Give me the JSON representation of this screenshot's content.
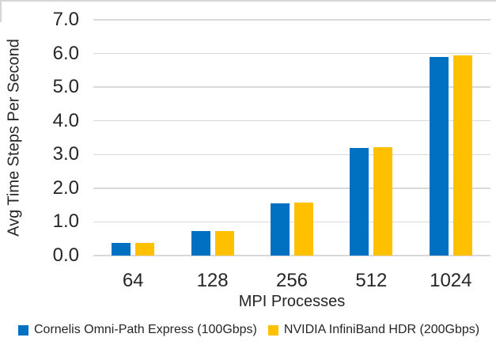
{
  "chart_data": {
    "type": "bar",
    "title": "",
    "categories": [
      "64",
      "128",
      "256",
      "512",
      "1024"
    ],
    "series": [
      {
        "name": "Cornelis Omni-Path Express (100Gbps)",
        "color": "#0070C0",
        "values": [
          0.37,
          0.73,
          1.54,
          3.2,
          5.9
        ]
      },
      {
        "name": "NVIDIA InfiniBand HDR (200Gbps)",
        "color": "#FFC000",
        "values": [
          0.37,
          0.73,
          1.58,
          3.22,
          5.95
        ]
      }
    ],
    "xlabel": "MPI Processes",
    "ylabel": "Avg Time Steps Per Second",
    "ylim": [
      0,
      7
    ],
    "ytick_step": 1.0,
    "ytick_format": "one-decimal",
    "grid": "horizontal",
    "gridline_color": "#D9D9D9",
    "text_color": "#262626",
    "legend_position": "bottom-left",
    "background_color": "#FFFFFF"
  }
}
